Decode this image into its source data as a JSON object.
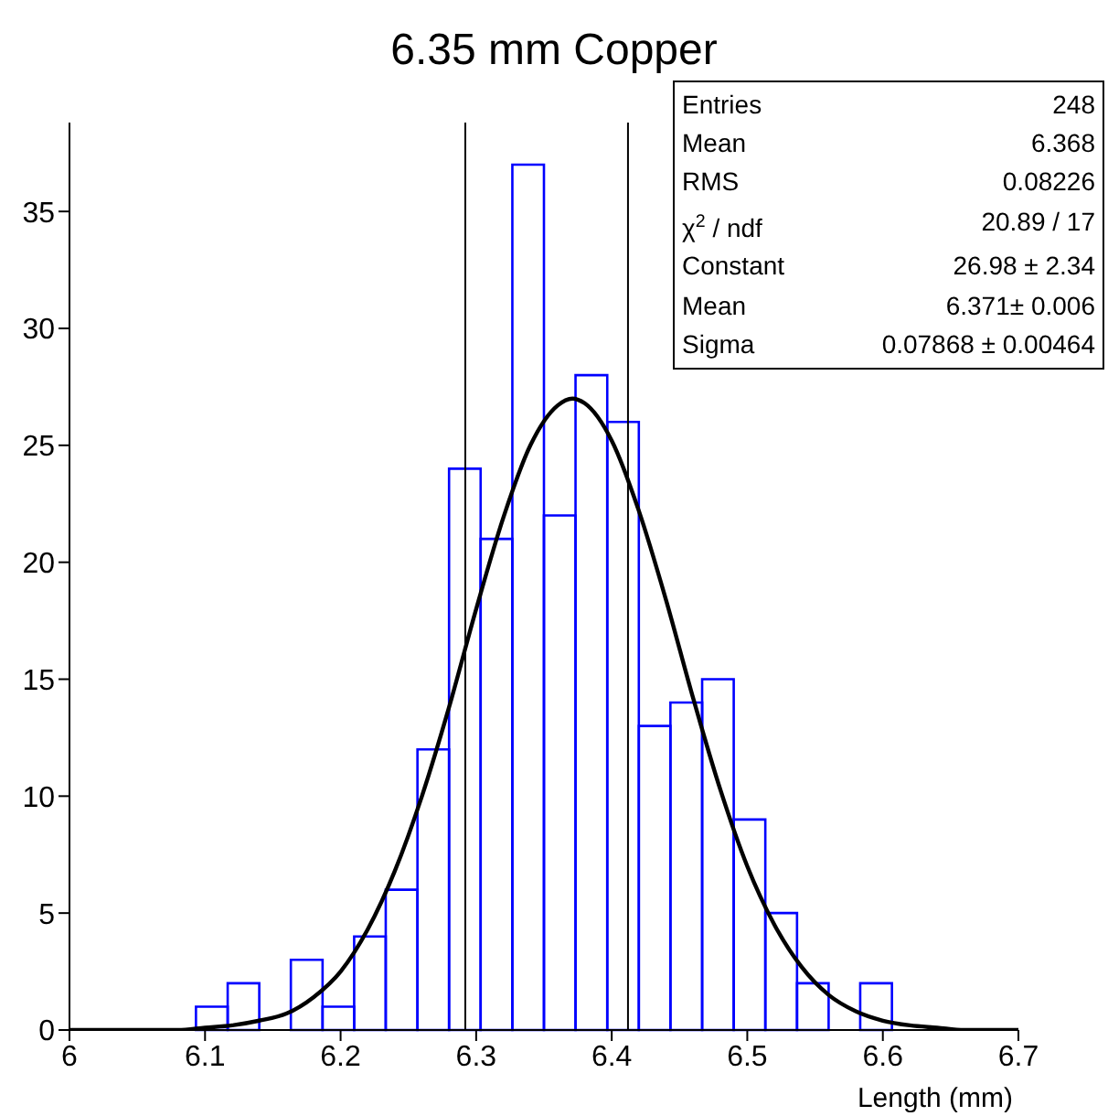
{
  "chart_data": {
    "type": "histogram",
    "title": "6.35 mm Copper",
    "xlabel": "Length (mm)",
    "bins": [
      6,
      6.0233,
      6.0467,
      6.07,
      6.0933,
      6.1167,
      6.14,
      6.1633,
      6.1867,
      6.21,
      6.2333,
      6.2567,
      6.28,
      6.3033,
      6.3267,
      6.35,
      6.3733,
      6.3967,
      6.42,
      6.4433,
      6.4667,
      6.49,
      6.5133,
      6.5367,
      6.56,
      6.5833,
      6.6067,
      6.63,
      6.6533,
      6.6767,
      6.7
    ],
    "values": [
      0,
      0,
      0,
      0,
      1,
      2,
      0,
      3,
      1,
      4,
      6,
      12,
      24,
      21,
      37,
      22,
      28,
      26,
      13,
      14,
      15,
      9,
      5,
      2,
      0,
      2,
      0,
      0,
      0,
      0
    ],
    "color": "#0000ff",
    "series": [
      {
        "type": "line",
        "color": "#000000",
        "x": [
          6,
          6.04,
          6.08,
          6.1,
          6.12,
          6.14,
          6.16,
          6.18,
          6.2,
          6.22,
          6.24,
          6.26,
          6.28,
          6.3,
          6.32,
          6.34,
          6.36,
          6.371,
          6.38,
          6.4,
          6.42,
          6.44,
          6.46,
          6.48,
          6.5,
          6.52,
          6.54,
          6.56,
          6.58,
          6.6,
          6.62,
          6.64,
          6.66,
          6.7
        ],
        "values": [
          0,
          0,
          0,
          0.1,
          0.2,
          0.4,
          0.7,
          1.4,
          2.5,
          4.3,
          6.8,
          10,
          13.8,
          18,
          21.9,
          25,
          26.7,
          27,
          26.8,
          25.2,
          22.2,
          18.4,
          14.2,
          10.3,
          7,
          4.5,
          2.7,
          1.5,
          0.8,
          0.4,
          0.2,
          0.1,
          0,
          0
        ]
      }
    ],
    "xlim": [
      6,
      6.7
    ],
    "xticks": [
      6,
      6.1,
      6.2,
      6.3,
      6.4,
      6.5,
      6.6,
      6.7
    ],
    "ylim": [
      0,
      38.8
    ],
    "yticks": [
      0,
      5,
      10,
      15,
      20,
      25,
      30,
      35
    ],
    "grid": false,
    "ref_lines": [
      {
        "axis": "x",
        "value": 6.292,
        "color": "#000000"
      },
      {
        "axis": "x",
        "value": 6.412,
        "color": "#000000"
      }
    ],
    "annotations": [
      "Entries",
      "248",
      "Mean",
      "6.368",
      "RMS",
      "0.08226",
      "χ$^{2}$ / ndf",
      "20.89 / 17",
      "Constant",
      "26.98 ± 2.34",
      "Mean",
      "6.371± 0.006",
      "Sigma",
      "0.07868 ± 0.00464"
    ]
  }
}
